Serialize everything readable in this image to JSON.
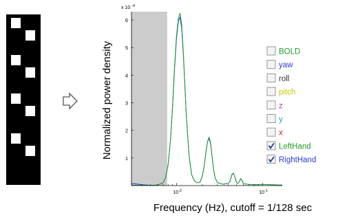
{
  "chart_data": {
    "type": "line",
    "xlabel": "Frequency (Hz), cutoff = 1/128 sec",
    "ylabel": "Normalized power density",
    "y_exponent_label": "x 10",
    "y_exponent_power": "-4",
    "xscale": "log",
    "xlim": [
      0.003,
      0.17
    ],
    "ylim": [
      0,
      6.3
    ],
    "x_ticks": [
      {
        "value": 0.01,
        "base": "10",
        "exp": "-2"
      },
      {
        "value": 0.1,
        "base": "10",
        "exp": "-1"
      }
    ],
    "y_ticks": [
      {
        "value": 1,
        "label": "1"
      },
      {
        "value": 2,
        "label": "2"
      },
      {
        "value": 3,
        "label": "3"
      },
      {
        "value": 4,
        "label": "4"
      },
      {
        "value": 5,
        "label": "5"
      },
      {
        "value": 6,
        "label": "6"
      }
    ],
    "shaded_region": [
      0.003,
      0.0078
    ],
    "series": [
      {
        "name": "RightHand",
        "color": "#2b3bd6",
        "x": [
          0.003,
          0.004,
          0.005,
          0.006,
          0.007,
          0.0075,
          0.008,
          0.0085,
          0.009,
          0.0095,
          0.01,
          0.0105,
          0.011,
          0.0115,
          0.012,
          0.0125,
          0.013,
          0.014,
          0.015,
          0.016,
          0.017,
          0.018,
          0.019,
          0.02,
          0.021,
          0.022,
          0.023,
          0.024,
          0.025,
          0.026,
          0.027,
          0.028,
          0.03,
          0.035,
          0.04,
          0.042,
          0.044,
          0.046,
          0.048,
          0.05,
          0.052,
          0.054,
          0.056,
          0.058,
          0.06,
          0.07,
          0.08,
          0.1,
          0.13,
          0.17
        ],
        "y": [
          0.08,
          0.03,
          0.01,
          0.02,
          0.1,
          0.3,
          0.75,
          1.6,
          2.8,
          4.2,
          5.3,
          5.95,
          6.1,
          5.7,
          4.8,
          3.7,
          2.6,
          1.1,
          0.4,
          0.2,
          0.12,
          0.1,
          0.15,
          0.35,
          0.7,
          1.2,
          1.6,
          1.7,
          1.5,
          1.05,
          0.6,
          0.3,
          0.1,
          0.05,
          0.08,
          0.15,
          0.38,
          0.45,
          0.3,
          0.1,
          0.08,
          0.15,
          0.25,
          0.18,
          0.07,
          0.04,
          0.03,
          0.04,
          0.03,
          0.02
        ]
      },
      {
        "name": "LeftHand",
        "color": "#1f9e2a",
        "x": [
          0.003,
          0.004,
          0.005,
          0.006,
          0.007,
          0.0075,
          0.008,
          0.0085,
          0.009,
          0.0095,
          0.01,
          0.0105,
          0.011,
          0.0115,
          0.012,
          0.0125,
          0.013,
          0.014,
          0.015,
          0.016,
          0.017,
          0.018,
          0.019,
          0.02,
          0.021,
          0.022,
          0.023,
          0.024,
          0.025,
          0.026,
          0.027,
          0.028,
          0.03,
          0.035,
          0.04,
          0.042,
          0.044,
          0.046,
          0.048,
          0.05,
          0.052,
          0.054,
          0.056,
          0.058,
          0.06,
          0.07,
          0.08,
          0.1,
          0.13,
          0.17
        ],
        "y": [
          0.02,
          0.01,
          0.01,
          0.02,
          0.1,
          0.3,
          0.75,
          1.6,
          2.85,
          4.3,
          5.4,
          6.05,
          6.25,
          5.85,
          4.9,
          3.75,
          2.6,
          1.1,
          0.4,
          0.2,
          0.12,
          0.1,
          0.15,
          0.35,
          0.7,
          1.2,
          1.6,
          1.75,
          1.55,
          1.05,
          0.6,
          0.3,
          0.1,
          0.05,
          0.08,
          0.15,
          0.4,
          0.45,
          0.3,
          0.1,
          0.08,
          0.15,
          0.25,
          0.18,
          0.07,
          0.04,
          0.03,
          0.04,
          0.03,
          0.02
        ]
      }
    ],
    "legend": {
      "placement": "right",
      "items": [
        {
          "label": "BOLD",
          "color": "#1f9e2a",
          "checked": false
        },
        {
          "label": "yaw",
          "color": "#2b3bd6",
          "checked": false
        },
        {
          "label": "roll",
          "color": "#333333",
          "checked": false
        },
        {
          "label": "pitch",
          "color": "#c8c800",
          "checked": false
        },
        {
          "label": "z",
          "color": "#c02bc0",
          "checked": false
        },
        {
          "label": "y",
          "color": "#20a8b8",
          "checked": false
        },
        {
          "label": "x",
          "color": "#d22222",
          "checked": false
        },
        {
          "label": "LeftHand",
          "color": "#1f9e2a",
          "checked": true
        },
        {
          "label": "RightHand",
          "color": "#2b3bd6",
          "checked": true
        }
      ]
    }
  },
  "arrow_icon": "right-arrow-icon",
  "stimulus_pattern": {
    "description_icon": "block-design-icon",
    "left_blocks": 4,
    "right_blocks": 4
  }
}
